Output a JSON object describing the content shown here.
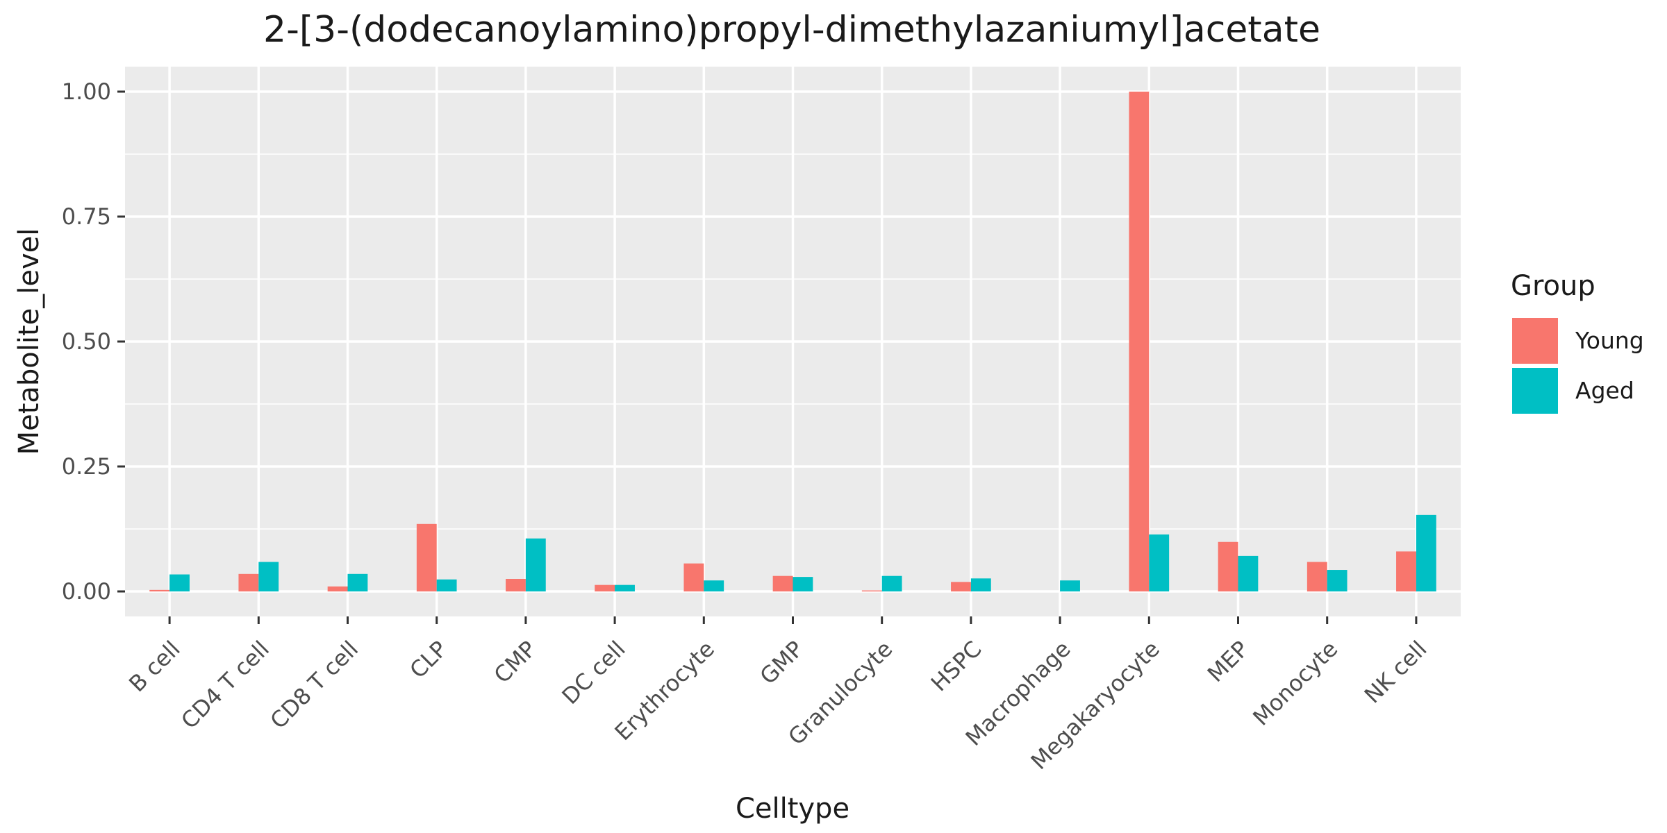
{
  "chart_data": {
    "type": "bar",
    "title": "2-[3-(dodecanoylamino)propyl-dimethylazaniumyl]acetate",
    "xlabel": "Celltype",
    "ylabel": "Metabolite_level",
    "ylim": [
      -0.05,
      1.05
    ],
    "yticks": [
      0.0,
      0.25,
      0.5,
      0.75,
      1.0
    ],
    "ytick_labels": [
      "0.00",
      "0.25",
      "0.50",
      "0.75",
      "1.00"
    ],
    "grid": true,
    "legend_position": "right",
    "legend_title": "Group",
    "categories": [
      "B cell",
      "CD4 T cell",
      "CD8 T cell",
      "CLP",
      "CMP",
      "DC cell",
      "Erythrocyte",
      "GMP",
      "Granulocyte",
      "HSPC",
      "Macrophage",
      "Megakaryocyte",
      "MEP",
      "Monocyte",
      "NK cell"
    ],
    "series": [
      {
        "name": "Young",
        "color": "#F8766D",
        "values": [
          0.003,
          0.035,
          0.01,
          0.135,
          0.025,
          0.013,
          0.056,
          0.031,
          0.002,
          0.019,
          0.0,
          1.0,
          0.099,
          0.059,
          0.08
        ]
      },
      {
        "name": "Aged",
        "color": "#00BFC4",
        "values": [
          0.034,
          0.059,
          0.035,
          0.024,
          0.106,
          0.013,
          0.022,
          0.029,
          0.031,
          0.026,
          0.022,
          0.114,
          0.071,
          0.043,
          0.153
        ]
      }
    ]
  }
}
